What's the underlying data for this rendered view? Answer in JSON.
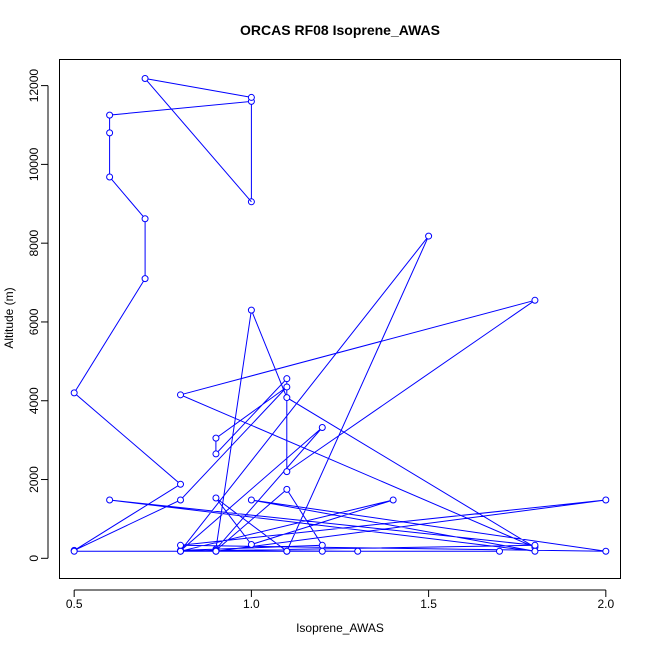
{
  "chart_data": {
    "type": "line",
    "title": "ORCAS RF08 Isoprene_AWAS",
    "xlabel": "Isoprene_AWAS",
    "ylabel": "Altitude (m)",
    "xlim": [
      0.46,
      2.04
    ],
    "ylim": [
      -500,
      12650
    ],
    "xticks": [
      "0.5",
      "1.0",
      "1.5",
      "2.0"
    ],
    "yticks": [
      "0",
      "2000",
      "4000",
      "6000",
      "8000",
      "10000",
      "12000"
    ],
    "series_color": "#0000ff",
    "markers": "open-circle",
    "series": [
      {
        "x": [
          1.0,
          1.0,
          0.6,
          0.6,
          0.6,
          0.7,
          0.7,
          0.5,
          0.8,
          0.5,
          0.8,
          1.1,
          0.9,
          0.9,
          1.1,
          1.1,
          1.8,
          0.8,
          1.8,
          1.1,
          1.0,
          0.9,
          1.2,
          0.8,
          1.5,
          1.1,
          0.9,
          1.0,
          1.4,
          0.8,
          0.9,
          1.1,
          1.2,
          0.8,
          1.3,
          0.5,
          1.7,
          0.8,
          1.8,
          0.6,
          1.8,
          1.0,
          2.0,
          0.8,
          2.0,
          0.9,
          1.1,
          1.2,
          0.9
        ],
        "y": [
          9050,
          11600,
          11250,
          10800,
          9680,
          8620,
          7100,
          4200,
          1880,
          200,
          1480,
          4350,
          3050,
          2650,
          4560,
          2200,
          6550,
          4150,
          280,
          4080,
          6300,
          230,
          3320,
          190,
          8180,
          180,
          1530,
          350,
          1480,
          180,
          200,
          1750,
          330,
          200,
          180,
          180,
          180,
          180,
          330,
          1480,
          180,
          1480,
          180,
          330,
          1480,
          180,
          180,
          180,
          180
        ]
      }
    ],
    "top_points": [
      {
        "x": 0.7,
        "y": 12180
      },
      {
        "x": 1.0,
        "y": 11700
      }
    ]
  }
}
